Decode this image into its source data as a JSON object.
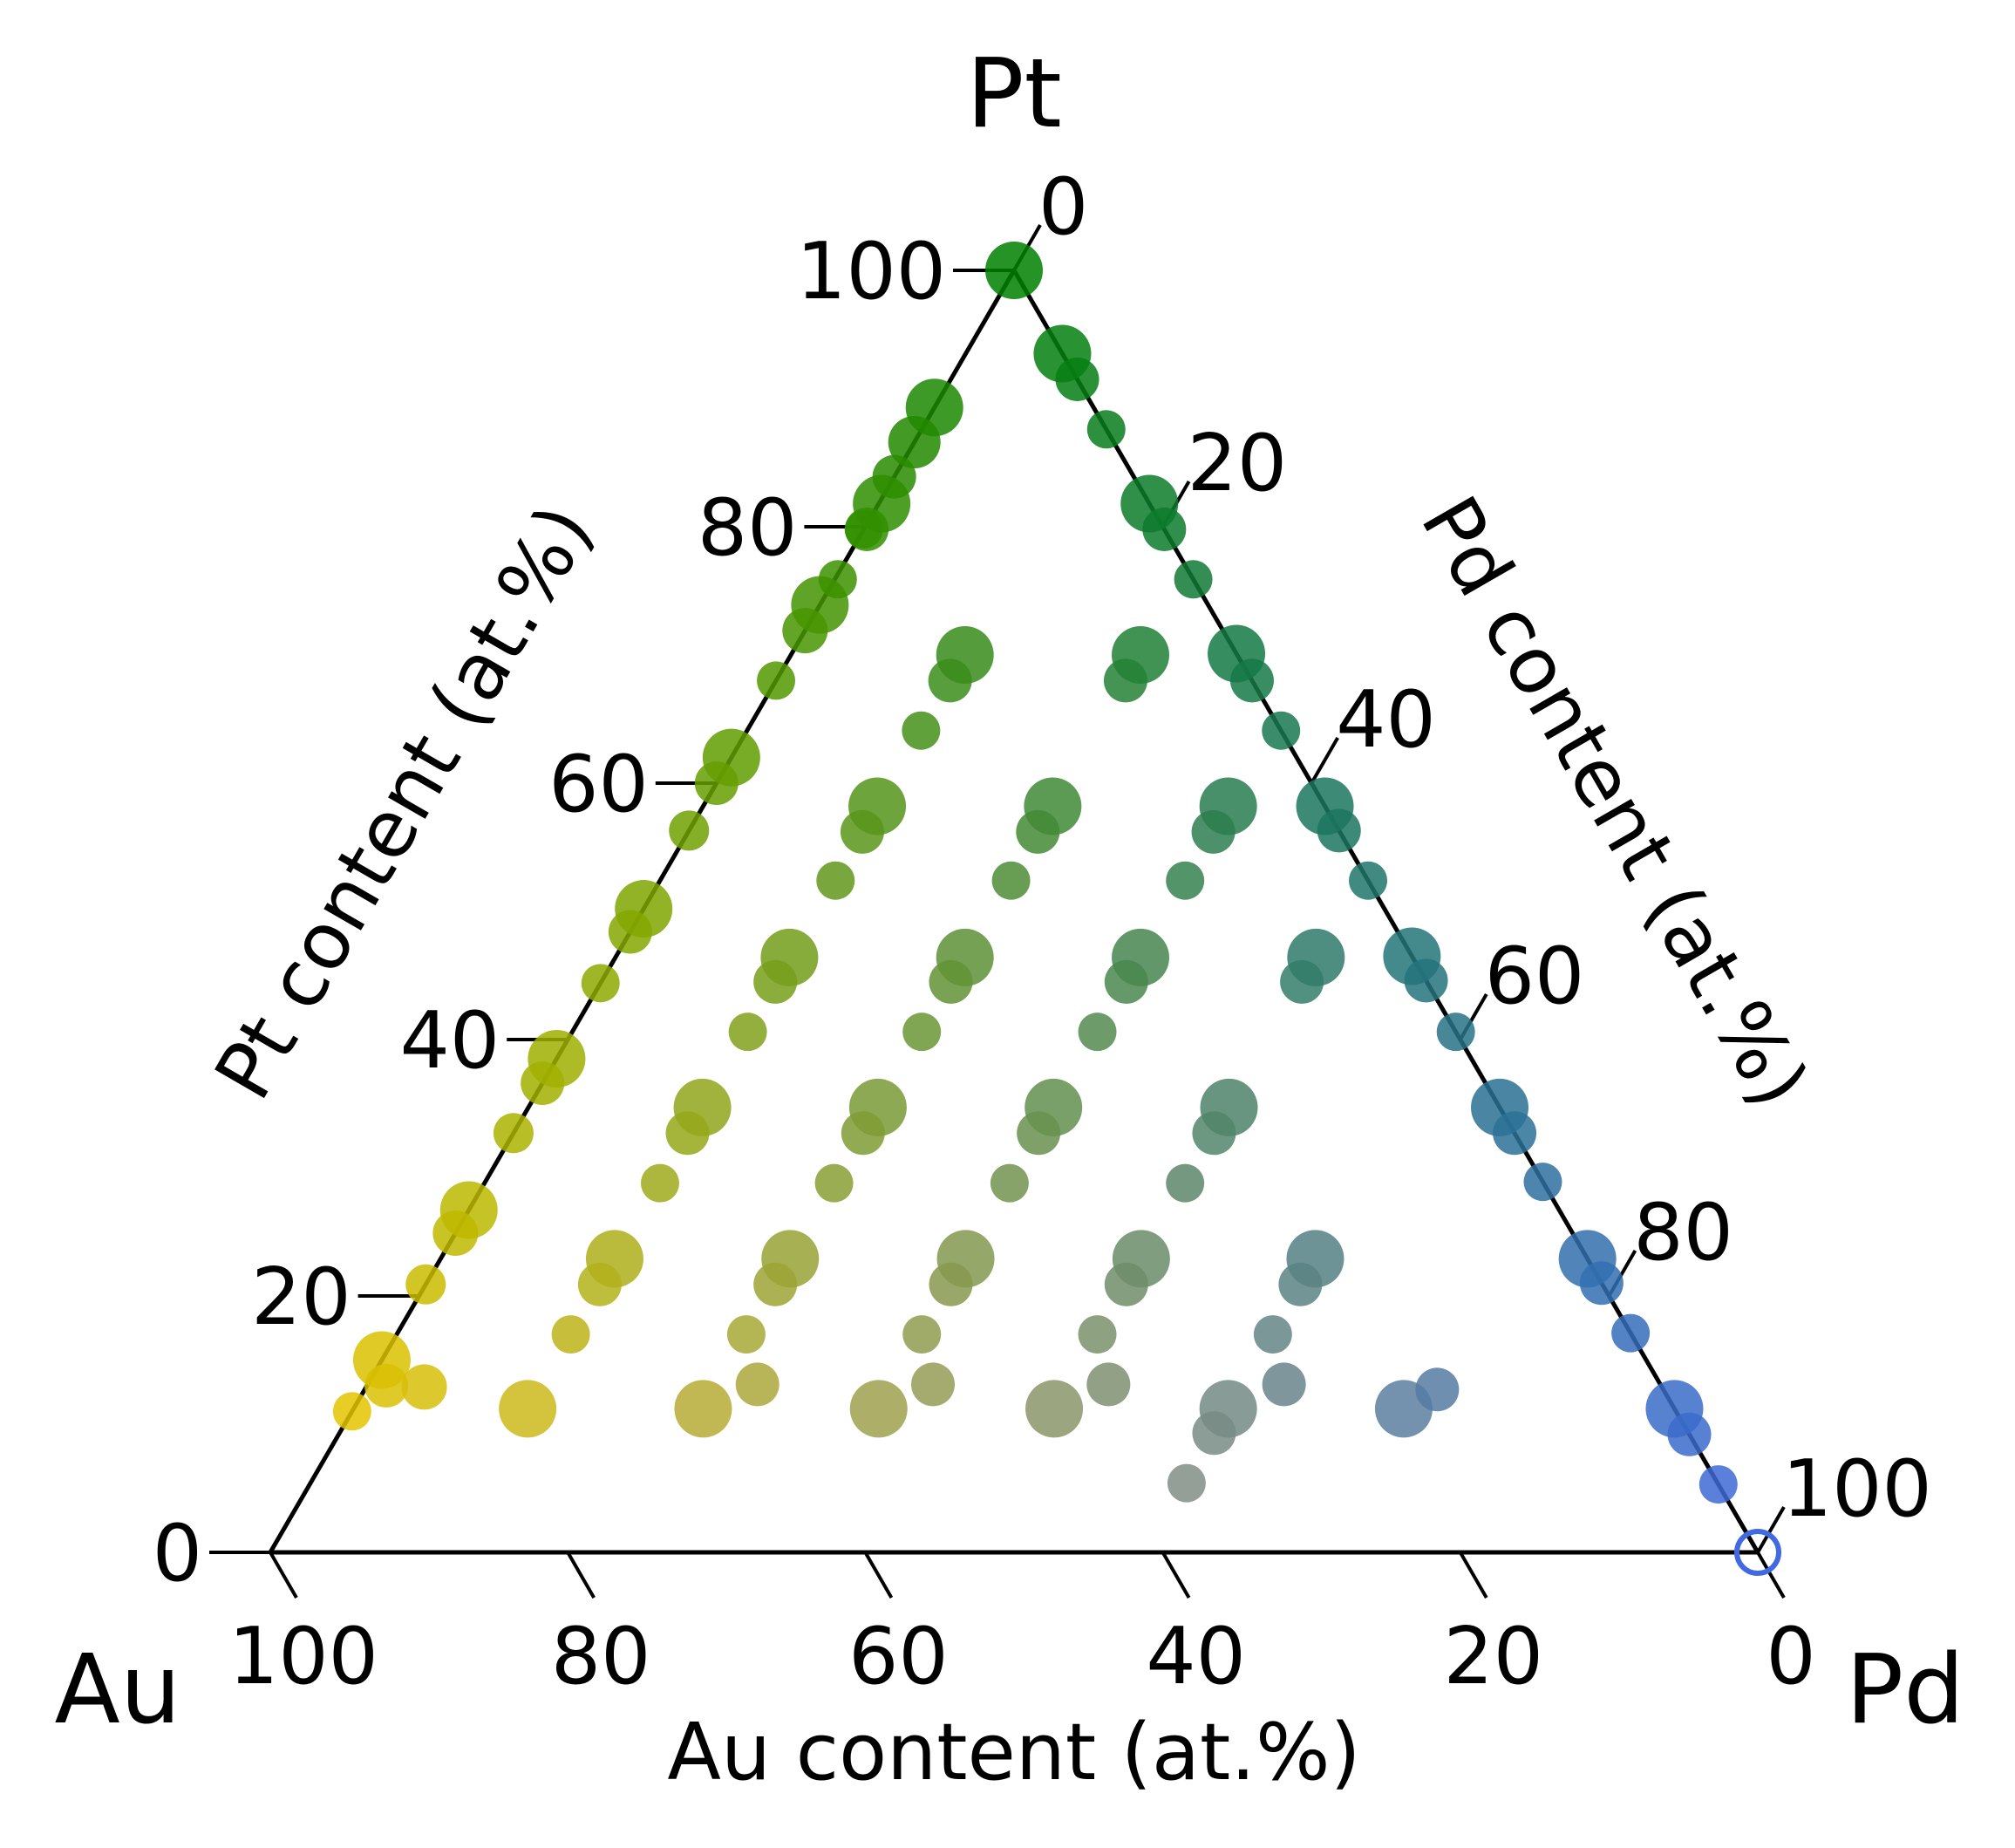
{
  "chart_data": {
    "type": "scatter",
    "subtype": "ternary",
    "vertices": {
      "top": "Pt",
      "left": "Au",
      "right": "Pd"
    },
    "axes": {
      "left": {
        "label": "Pt content (at.%)",
        "ticks": [
          "0",
          "20",
          "40",
          "60",
          "80",
          "100"
        ]
      },
      "right": {
        "label": "Pd content (at.%)",
        "ticks": [
          "0",
          "20",
          "40",
          "60",
          "80",
          "100"
        ]
      },
      "bottom": {
        "label": "Au content (at.%)",
        "ticks": [
          "100",
          "80",
          "60",
          "40",
          "20",
          "0"
        ]
      }
    },
    "colors": {
      "Au": "#ffcc00",
      "Pt": "#008000",
      "Pd": "#4169e1",
      "axis": "#000000"
    },
    "points": [
      {
        "pt": 100,
        "pd": 0,
        "s": 1
      },
      {
        "pt": 89.3,
        "pd": 0,
        "s": 1
      },
      {
        "pt": 86.6,
        "pd": 0,
        "s": 0.85
      },
      {
        "pt": 83.9,
        "pd": 0,
        "s": 0.6
      },
      {
        "pt": 79.8,
        "pd": 0,
        "s": 0.45
      },
      {
        "pt": 73.9,
        "pd": 0,
        "s": 1
      },
      {
        "pt": 71.9,
        "pd": 0,
        "s": 0.65
      },
      {
        "pt": 68,
        "pd": 0,
        "s": 0.45
      },
      {
        "pt": 62,
        "pd": 0,
        "s": 1
      },
      {
        "pt": 60,
        "pd": 0,
        "s": 0.6
      },
      {
        "pt": 56.3,
        "pd": 0,
        "s": 0.5
      },
      {
        "pt": 50.2,
        "pd": 0,
        "s": 1
      },
      {
        "pt": 48.4,
        "pd": 0,
        "s": 0.6
      },
      {
        "pt": 44.4,
        "pd": 0,
        "s": 0.45
      },
      {
        "pt": 38.5,
        "pd": 0,
        "s": 1
      },
      {
        "pt": 36.6,
        "pd": 0,
        "s": 0.6
      },
      {
        "pt": 32.7,
        "pd": 0,
        "s": 0.5
      },
      {
        "pt": 26.7,
        "pd": 0,
        "s": 1
      },
      {
        "pt": 24.9,
        "pd": 0,
        "s": 0.65
      },
      {
        "pt": 20.9,
        "pd": 0,
        "s": 0.5
      },
      {
        "pt": 15,
        "pd": 0,
        "s": 1
      },
      {
        "pt": 11,
        "pd": 0,
        "s": 0.45
      },
      {
        "pt": 93.5,
        "pd": 6.5,
        "s": 1
      },
      {
        "pt": 91.5,
        "pd": 8.5,
        "s": 0.6
      },
      {
        "pt": 87.6,
        "pd": 12.4,
        "s": 0.45
      },
      {
        "pt": 81.8,
        "pd": 18.2,
        "s": 1
      },
      {
        "pt": 79.8,
        "pd": 20.2,
        "s": 0.6
      },
      {
        "pt": 75.9,
        "pd": 24.1,
        "s": 0.45
      },
      {
        "pt": 70.1,
        "pd": 29.9,
        "s": 1
      },
      {
        "pt": 68,
        "pd": 32,
        "s": 0.6
      },
      {
        "pt": 64.1,
        "pd": 35.9,
        "s": 0.45
      },
      {
        "pt": 58.2,
        "pd": 41.8,
        "s": 1
      },
      {
        "pt": 56.3,
        "pd": 43.7,
        "s": 0.6
      },
      {
        "pt": 52.4,
        "pd": 47.6,
        "s": 0.45
      },
      {
        "pt": 46.5,
        "pd": 53.5,
        "s": 1
      },
      {
        "pt": 44.6,
        "pd": 55.4,
        "s": 0.6
      },
      {
        "pt": 40.6,
        "pd": 59.4,
        "s": 0.45
      },
      {
        "pt": 34.7,
        "pd": 65.3,
        "s": 1
      },
      {
        "pt": 32.7,
        "pd": 67.3,
        "s": 0.6
      },
      {
        "pt": 28.9,
        "pd": 71.1,
        "s": 0.45
      },
      {
        "pt": 22.9,
        "pd": 77.1,
        "s": 1
      },
      {
        "pt": 21,
        "pd": 79,
        "s": 0.6
      },
      {
        "pt": 17.1,
        "pd": 82.9,
        "s": 0.45
      },
      {
        "pt": 11.2,
        "pd": 88.8,
        "s": 1
      },
      {
        "pt": 9.2,
        "pd": 90.8,
        "s": 0.6
      },
      {
        "pt": 5.3,
        "pd": 94.7,
        "s": 0.45
      },
      {
        "pt": 81.8,
        "pd": 0.2,
        "s": 1
      },
      {
        "pt": 79.8,
        "pd": 0.2,
        "s": 0.6
      },
      {
        "pt": 75.9,
        "pd": 0.2,
        "s": 0.45
      },
      {
        "pt": 70,
        "pd": 11.7,
        "s": 1
      },
      {
        "pt": 68,
        "pd": 11.7,
        "s": 0.6
      },
      {
        "pt": 64.1,
        "pd": 11.7,
        "s": 0.45
      },
      {
        "pt": 58.2,
        "pd": 11.7,
        "s": 1
      },
      {
        "pt": 56.2,
        "pd": 11.7,
        "s": 0.6
      },
      {
        "pt": 52.4,
        "pd": 11.8,
        "s": 0.45
      },
      {
        "pt": 46.4,
        "pd": 23.5,
        "s": 1
      },
      {
        "pt": 44.5,
        "pd": 23.5,
        "s": 0.6
      },
      {
        "pt": 40.6,
        "pd": 23.5,
        "s": 0.45
      },
      {
        "pt": 34.7,
        "pd": 35.3,
        "s": 1
      },
      {
        "pt": 32.7,
        "pd": 35.3,
        "s": 0.6
      },
      {
        "pt": 28.8,
        "pd": 35.3,
        "s": 0.45
      },
      {
        "pt": 22.9,
        "pd": 47.1,
        "s": 1
      },
      {
        "pt": 20.9,
        "pd": 47.1,
        "s": 0.6
      },
      {
        "pt": 17,
        "pd": 47.1,
        "s": 0.45
      },
      {
        "pt": 11.2,
        "pd": 58.8,
        "s": 1
      },
      {
        "pt": 9.3,
        "pd": 58.8,
        "s": 0.6
      },
      {
        "pt": 5.4,
        "pd": 58.9,
        "s": 0.45
      },
      {
        "pt": 70,
        "pd": 23.5,
        "s": 1
      },
      {
        "pt": 68,
        "pd": 23.5,
        "s": 0.6
      },
      {
        "pt": 58.2,
        "pd": 23.5,
        "s": 1
      },
      {
        "pt": 56.2,
        "pd": 23.5,
        "s": 0.6
      },
      {
        "pt": 52.4,
        "pd": 23.6,
        "s": 0.45
      },
      {
        "pt": 46.4,
        "pd": 11.7,
        "s": 1
      },
      {
        "pt": 44.5,
        "pd": 11.7,
        "s": 0.6
      },
      {
        "pt": 40.6,
        "pd": 11.8,
        "s": 0.45
      },
      {
        "pt": 58.2,
        "pd": 35.3,
        "s": 1
      },
      {
        "pt": 56.2,
        "pd": 35.3,
        "s": 0.6
      },
      {
        "pt": 52.4,
        "pd": 35.3,
        "s": 0.45
      },
      {
        "pt": 46.4,
        "pd": 35.3,
        "s": 1
      },
      {
        "pt": 44.5,
        "pd": 35.3,
        "s": 0.6
      },
      {
        "pt": 40.6,
        "pd": 35.3,
        "s": 0.45
      },
      {
        "pt": 34.7,
        "pd": 11.7,
        "s": 1
      },
      {
        "pt": 32.7,
        "pd": 11.7,
        "s": 0.6
      },
      {
        "pt": 28.8,
        "pd": 11.8,
        "s": 0.45
      },
      {
        "pt": 34.7,
        "pd": 23.5,
        "s": 1
      },
      {
        "pt": 32.7,
        "pd": 23.5,
        "s": 0.6
      },
      {
        "pt": 28.8,
        "pd": 23.5,
        "s": 0.45
      },
      {
        "pt": 46.4,
        "pd": 47.1,
        "s": 1
      },
      {
        "pt": 44.5,
        "pd": 47.1,
        "s": 0.6
      },
      {
        "pt": 34.7,
        "pd": 47.1,
        "s": 1
      },
      {
        "pt": 32.7,
        "pd": 47.1,
        "s": 0.6
      },
      {
        "pt": 28.8,
        "pd": 47.1,
        "s": 0.45
      },
      {
        "pt": 22.9,
        "pd": 11.7,
        "s": 1
      },
      {
        "pt": 20.9,
        "pd": 11.7,
        "s": 0.6
      },
      {
        "pt": 17,
        "pd": 11.7,
        "s": 0.45
      },
      {
        "pt": 22.9,
        "pd": 23.5,
        "s": 1
      },
      {
        "pt": 20.9,
        "pd": 23.5,
        "s": 0.6
      },
      {
        "pt": 17,
        "pd": 23.5,
        "s": 0.45
      },
      {
        "pt": 22.9,
        "pd": 35.3,
        "s": 1
      },
      {
        "pt": 20.9,
        "pd": 35.3,
        "s": 0.6
      },
      {
        "pt": 17,
        "pd": 35.3,
        "s": 0.45
      },
      {
        "pt": 22.9,
        "pd": 58.8,
        "s": 1
      },
      {
        "pt": 20.9,
        "pd": 58.8,
        "s": 0.6
      },
      {
        "pt": 17,
        "pd": 58.9,
        "s": 0.45
      },
      {
        "pt": 11.2,
        "pd": 11.7,
        "s": 1
      },
      {
        "pt": 11.2,
        "pd": 23.5,
        "s": 1
      },
      {
        "pt": 11.2,
        "pd": 35.3,
        "s": 1
      },
      {
        "pt": 11.2,
        "pd": 47.1,
        "s": 1
      },
      {
        "pt": 11.2,
        "pd": 70.6,
        "s": 1
      },
      {
        "pt": 12.7,
        "pd": 72.1,
        "s": 0.6
      },
      {
        "pt": 13,
        "pd": 1.3,
        "s": 0.6
      },
      {
        "pt": 12.9,
        "pd": 3.9,
        "s": 0.65
      },
      {
        "pt": 13.1,
        "pd": 26.2,
        "s": 0.6
      },
      {
        "pt": 13.1,
        "pd": 38,
        "s": 0.6
      },
      {
        "pt": 13.1,
        "pd": 49.8,
        "s": 0.6
      },
      {
        "pt": 13.1,
        "pd": 61.6,
        "s": 0.6
      },
      {
        "pt": 0,
        "pd": 100,
        "s": 1,
        "hollow": true
      }
    ]
  }
}
